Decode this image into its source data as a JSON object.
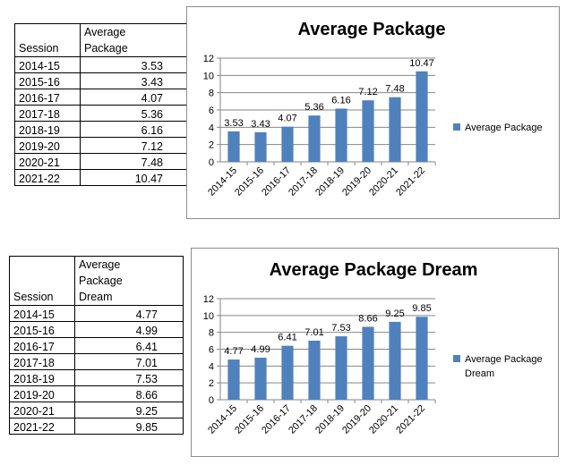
{
  "table1": {
    "header": [
      "Session",
      "Average\nPackage"
    ],
    "rows": [
      [
        "2014-15",
        "3.53"
      ],
      [
        "2015-16",
        "3.43"
      ],
      [
        "2016-17",
        "4.07"
      ],
      [
        "2017-18",
        "5.36"
      ],
      [
        "2018-19",
        "6.16"
      ],
      [
        "2019-20",
        "7.12"
      ],
      [
        "2020-21",
        "7.48"
      ],
      [
        "2021-22",
        "10.47"
      ]
    ]
  },
  "table2": {
    "header": [
      "Session",
      "Average\nPackage\nDream"
    ],
    "rows": [
      [
        "2014-15",
        "4.77"
      ],
      [
        "2015-16",
        "4.99"
      ],
      [
        "2016-17",
        "6.41"
      ],
      [
        "2017-18",
        "7.01"
      ],
      [
        "2018-19",
        "7.53"
      ],
      [
        "2019-20",
        "8.66"
      ],
      [
        "2020-21",
        "9.25"
      ],
      [
        "2021-22",
        "9.85"
      ]
    ]
  },
  "colors": {
    "bar": "#4f81bd",
    "grid": "#868686",
    "border": "#8c8c8c"
  },
  "chart_data": [
    {
      "type": "bar",
      "title": "Average Package",
      "categories": [
        "2014-15",
        "2015-16",
        "2016-17",
        "2017-18",
        "2018-19",
        "2019-20",
        "2020-21",
        "2021-22"
      ],
      "series": [
        {
          "name": "Average Package",
          "values": [
            3.53,
            3.43,
            4.07,
            5.36,
            6.16,
            7.12,
            7.48,
            10.47
          ]
        }
      ],
      "data_labels": [
        "3.53",
        "3.43",
        "4.07",
        "5.36",
        "6.16",
        "7.12",
        "7.48",
        "10.47"
      ],
      "yticks": [
        "0",
        "2",
        "4",
        "6",
        "8",
        "10",
        "12"
      ],
      "ylim": [
        0,
        12
      ],
      "grid": true,
      "legend_position": "right",
      "xlabel": "",
      "ylabel": ""
    },
    {
      "type": "bar",
      "title": "Average Package Dream",
      "categories": [
        "2014-15",
        "2015-16",
        "2016-17",
        "2017-18",
        "2018-19",
        "2019-20",
        "2020-21",
        "2021-22"
      ],
      "series": [
        {
          "name": "Average Package Dream",
          "values": [
            4.77,
            4.99,
            6.41,
            7.01,
            7.53,
            8.66,
            9.25,
            9.85
          ]
        }
      ],
      "data_labels": [
        "4.77",
        "4.99",
        "6.41",
        "7.01",
        "7.53",
        "8.66",
        "9.25",
        "9.85"
      ],
      "yticks": [
        "0",
        "2",
        "4",
        "6",
        "8",
        "10",
        "12"
      ],
      "ylim": [
        0,
        12
      ],
      "grid": true,
      "legend_position": "right",
      "xlabel": "",
      "ylabel": ""
    }
  ]
}
